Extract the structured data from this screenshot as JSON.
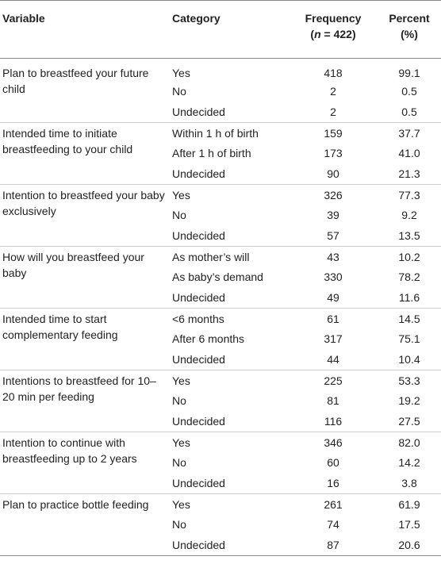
{
  "header": {
    "variable": "Variable",
    "category": "Category",
    "frequency_line1": "Frequency",
    "frequency_n": "n",
    "frequency_rest": " = 422)",
    "frequency_open": "(",
    "percent_line1": "Percent",
    "percent_line2": "(%)"
  },
  "groups": [
    {
      "variable": "Plan to breastfeed your future child",
      "rows": [
        {
          "category": "Yes",
          "frequency": "418",
          "percent": "99.1"
        },
        {
          "category": "No",
          "frequency": "2",
          "percent": "0.5"
        },
        {
          "category": "Undecided",
          "frequency": "2",
          "percent": "0.5"
        }
      ]
    },
    {
      "variable": "Intended time to initiate breastfeeding to your child",
      "rows": [
        {
          "category": "Within 1 h of birth",
          "frequency": "159",
          "percent": "37.7"
        },
        {
          "category": "After 1 h of birth",
          "frequency": "173",
          "percent": "41.0"
        },
        {
          "category": "Undecided",
          "frequency": "90",
          "percent": "21.3"
        }
      ]
    },
    {
      "variable": "Intention to breastfeed your baby exclusively",
      "rows": [
        {
          "category": "Yes",
          "frequency": "326",
          "percent": "77.3"
        },
        {
          "category": "No",
          "frequency": "39",
          "percent": "9.2"
        },
        {
          "category": "Undecided",
          "frequency": "57",
          "percent": "13.5"
        }
      ]
    },
    {
      "variable": "How will you breastfeed your baby",
      "rows": [
        {
          "category": "As mother’s will",
          "frequency": "43",
          "percent": "10.2"
        },
        {
          "category": "As baby’s demand",
          "frequency": "330",
          "percent": "78.2"
        },
        {
          "category": "Undecided",
          "frequency": "49",
          "percent": "11.6"
        }
      ]
    },
    {
      "variable": "Intended time to start complementary feeding",
      "rows": [
        {
          "category": "<6 months",
          "frequency": "61",
          "percent": "14.5"
        },
        {
          "category": "After 6 months",
          "frequency": "317",
          "percent": "75.1"
        },
        {
          "category": "Undecided",
          "frequency": "44",
          "percent": "10.4"
        }
      ]
    },
    {
      "variable": "Intentions to breastfeed for 10–20 min per feeding",
      "rows": [
        {
          "category": "Yes",
          "frequency": "225",
          "percent": "53.3"
        },
        {
          "category": "No",
          "frequency": "81",
          "percent": "19.2"
        },
        {
          "category": "Undecided",
          "frequency": "116",
          "percent": "27.5"
        }
      ]
    },
    {
      "variable": "Intention to continue with breastfeeding up to 2 years",
      "rows": [
        {
          "category": "Yes",
          "frequency": "346",
          "percent": "82.0"
        },
        {
          "category": "No",
          "frequency": "60",
          "percent": "14.2"
        },
        {
          "category": "Undecided",
          "frequency": "16",
          "percent": "3.8"
        }
      ]
    },
    {
      "variable": "Plan to practice bottle feeding",
      "rows": [
        {
          "category": "Yes",
          "frequency": "261",
          "percent": "61.9"
        },
        {
          "category": "No",
          "frequency": "74",
          "percent": "17.5"
        },
        {
          "category": "Undecided",
          "frequency": "87",
          "percent": "20.6"
        }
      ]
    }
  ]
}
